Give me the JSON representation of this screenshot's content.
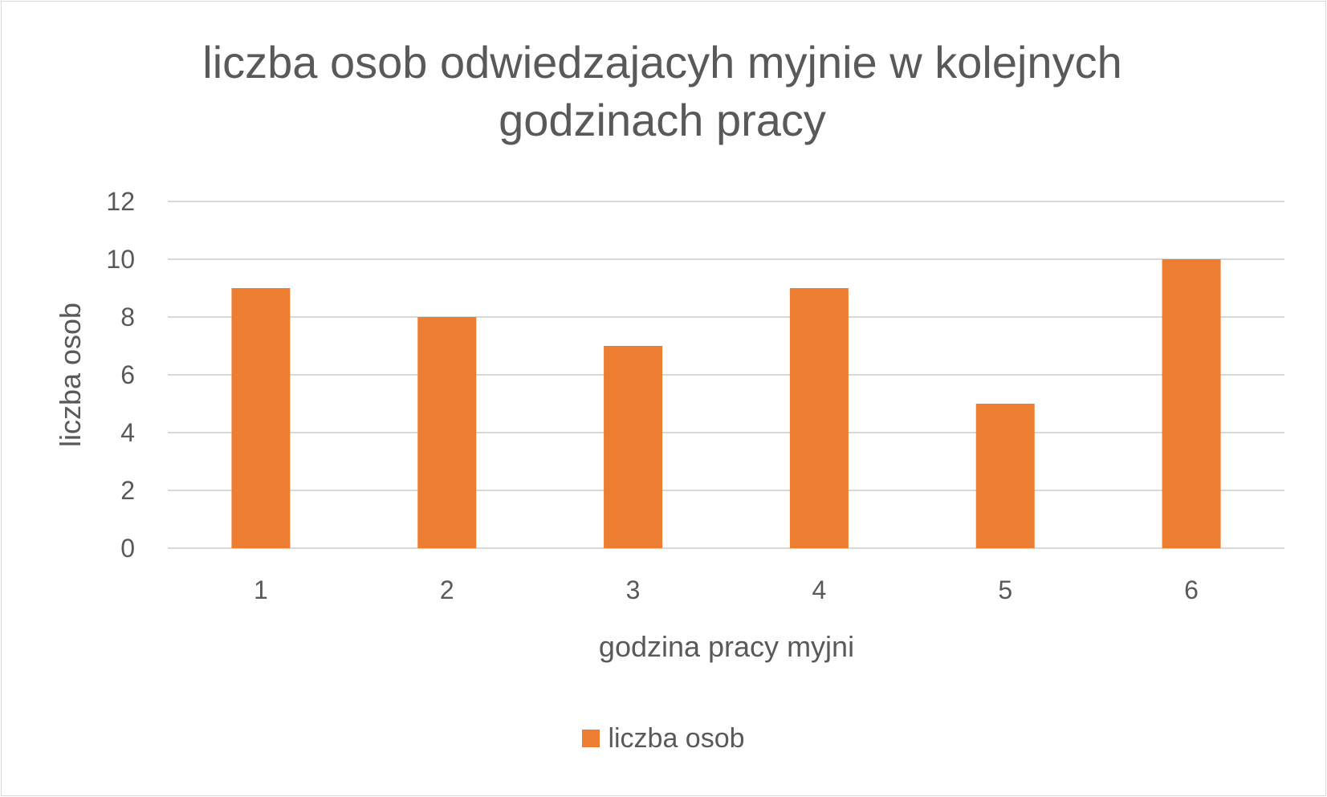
{
  "colors": {
    "bar": "#ED7D31",
    "gridline": "#D9D9D9",
    "text": "#595959",
    "background": "#FFFFFF"
  },
  "chart_data": {
    "type": "bar",
    "title": "liczba osob odwiedzajacyh myjnie w kolejnych godzinach pracy",
    "xlabel": "godzina pracy myjni",
    "ylabel": "liczba osob",
    "categories": [
      "1",
      "2",
      "3",
      "4",
      "5",
      "6"
    ],
    "series": [
      {
        "name": "liczba osob",
        "values": [
          9,
          8,
          7,
          9,
          5,
          10
        ]
      }
    ],
    "ylim": [
      0,
      12
    ],
    "yticks": [
      0,
      2,
      4,
      6,
      8,
      10,
      12
    ],
    "grid": true,
    "legend_position": "bottom"
  }
}
